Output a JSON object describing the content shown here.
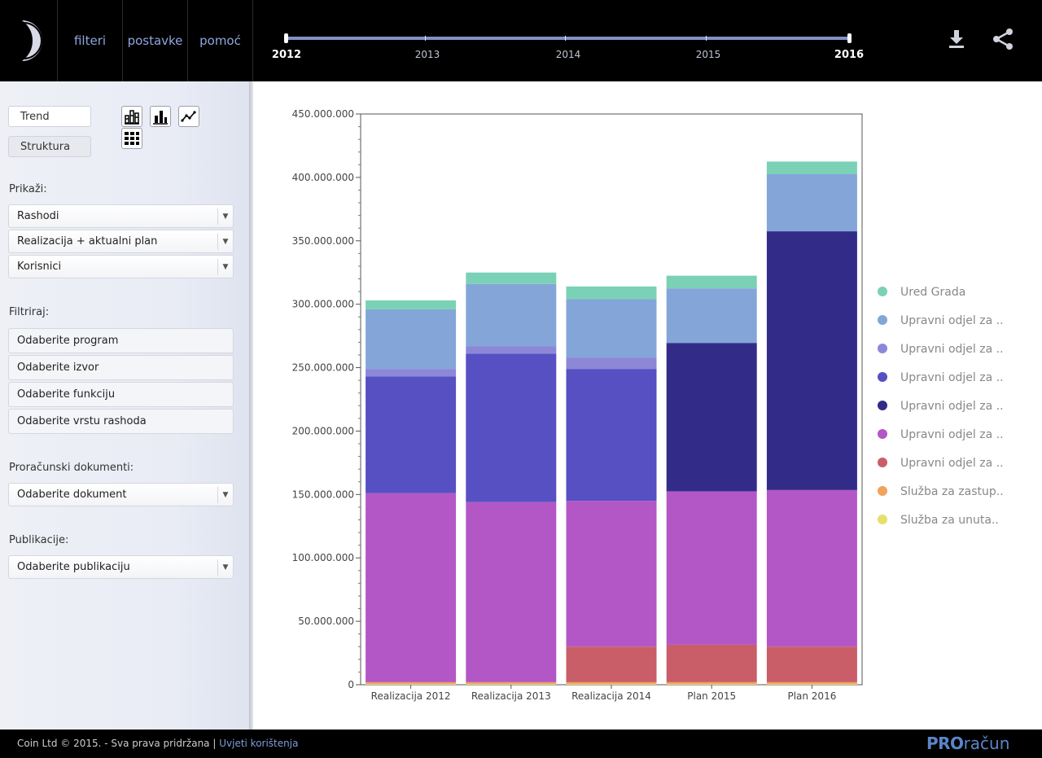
{
  "nav": {
    "filters": "filteri",
    "settings": "postavke",
    "help": "pomoć"
  },
  "timeline": {
    "years": [
      "2012",
      "2013",
      "2014",
      "2015",
      "2016"
    ],
    "selected_start": "2012",
    "selected_end": "2016"
  },
  "sidebar": {
    "view_buttons": [
      "Trend",
      "Struktura"
    ],
    "active_view": "Trend",
    "show_label": "Prikaži:",
    "show_selects": [
      "Rashodi",
      "Realizacija + aktualni plan",
      "Korisnici"
    ],
    "filter_label": "Filtriraj:",
    "filters": [
      "Odaberite program",
      "Odaberite izvor",
      "Odaberite funkciju",
      "Odaberite vrstu rashoda"
    ],
    "docs_label": "Proračunski dokumenti:",
    "docs_select": "Odaberite dokument",
    "pubs_label": "Publikacije:",
    "pubs_select": "Odaberite publikaciju"
  },
  "footer": {
    "copyright": "Coin Ltd © 2015. - Sva prava pridržana |",
    "terms": "Uvjeti korištenja",
    "brand_pro": "PRO",
    "brand_rest": "račun"
  },
  "chart_data": {
    "type": "bar",
    "stacked": true,
    "categories": [
      "Realizacija 2012",
      "Realizacija 2013",
      "Realizacija 2014",
      "Plan 2015",
      "Plan 2016"
    ],
    "yticks": [
      "0",
      "50.000.000",
      "100.000.000",
      "150.000.000",
      "200.000.000",
      "250.000.000",
      "300.000.000",
      "350.000.000",
      "400.000.000",
      "450.000.000"
    ],
    "ylim": [
      0,
      450000000
    ],
    "legend_position": "right",
    "series": [
      {
        "name": "Služba za unuta..",
        "color": "#e6df6a",
        "values": [
          500000,
          500000,
          500000,
          500000,
          500000
        ]
      },
      {
        "name": "Služba za zastup..",
        "color": "#f0a35c",
        "values": [
          1500000,
          1500000,
          1500000,
          1500000,
          1500000
        ]
      },
      {
        "name": "Upravni odjel za ..",
        "color": "#c95e68",
        "values": [
          0,
          0,
          28000000,
          29500000,
          28000000
        ]
      },
      {
        "name": "Upravni odjel za ..",
        "color": "#b357c7",
        "values": [
          149000000,
          142000000,
          115000000,
          121000000,
          123500000
        ]
      },
      {
        "name": "Upravni odjel za ..",
        "color": "#322c88",
        "values": [
          0,
          0,
          0,
          117000000,
          204000000
        ]
      },
      {
        "name": "Upravni odjel za ..",
        "color": "#5650c2",
        "values": [
          92000000,
          117000000,
          104000000,
          0,
          0
        ]
      },
      {
        "name": "Upravni odjel za ..",
        "color": "#8d87d8",
        "values": [
          6000000,
          6000000,
          9000000,
          0,
          0
        ]
      },
      {
        "name": "Upravni odjel za ..",
        "color": "#84a5d8",
        "values": [
          47000000,
          49000000,
          46000000,
          43000000,
          45000000
        ]
      },
      {
        "name": "Ured Grada",
        "color": "#7ad1b6",
        "values": [
          7000000,
          9000000,
          10000000,
          10000000,
          10000000
        ]
      }
    ]
  }
}
